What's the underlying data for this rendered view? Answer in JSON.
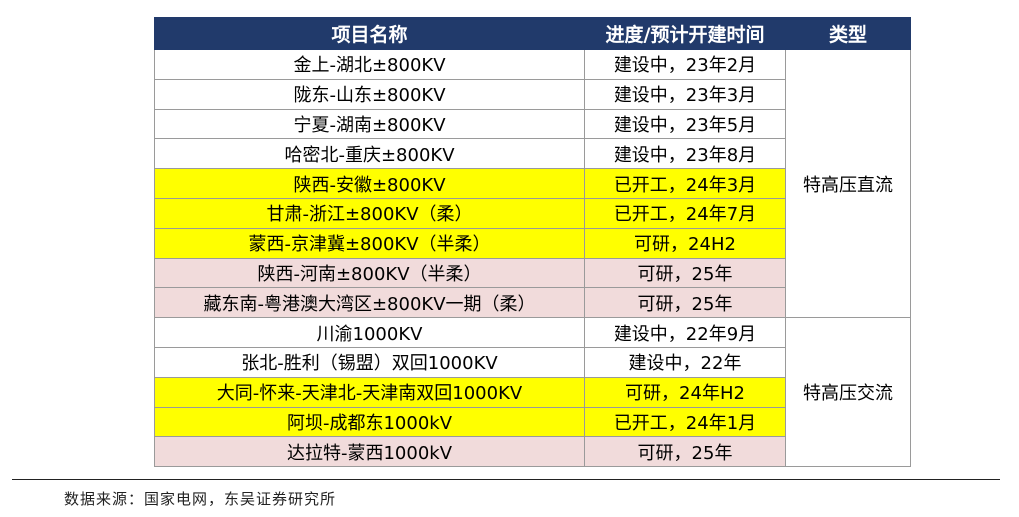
{
  "table": {
    "headers": [
      "项目名称",
      "进度/预计开建时间",
      "类型"
    ],
    "groups": [
      {
        "type": "特高压直流",
        "rows": [
          {
            "name": "金上-湖北±800KV",
            "status": "建设中，23年2月",
            "highlight": "none"
          },
          {
            "name": "陇东-山东±800KV",
            "status": "建设中，23年3月",
            "highlight": "none"
          },
          {
            "name": "宁夏-湖南±800KV",
            "status": "建设中，23年5月",
            "highlight": "none"
          },
          {
            "name": "哈密北-重庆±800KV",
            "status": "建设中，23年8月",
            "highlight": "none"
          },
          {
            "name": "陕西-安徽±800KV",
            "status": "已开工，24年3月",
            "highlight": "yellow"
          },
          {
            "name": "甘肃-浙江±800KV（柔）",
            "status": "已开工，24年7月",
            "highlight": "yellow"
          },
          {
            "name": "蒙西-京津冀±800KV（半柔）",
            "status": "可研，24H2",
            "highlight": "yellow"
          },
          {
            "name": "陕西-河南±800KV（半柔）",
            "status": "可研，25年",
            "highlight": "pink"
          },
          {
            "name": "藏东南-粤港澳大湾区±800KV一期（柔）",
            "status": "可研，25年",
            "highlight": "pink"
          }
        ]
      },
      {
        "type": "特高压交流",
        "rows": [
          {
            "name": "川渝1000KV",
            "status": "建设中，22年9月",
            "highlight": "none"
          },
          {
            "name": "张北-胜利（锡盟）双回1000KV",
            "status": "建设中，22年",
            "highlight": "none"
          },
          {
            "name": "大同-怀来-天津北-天津南双回1000KV",
            "status": "可研，24年H2",
            "highlight": "yellow"
          },
          {
            "name": "阿坝-成都东1000kV",
            "status": "已开工，24年1月",
            "highlight": "yellow"
          },
          {
            "name": "达拉特-蒙西1000kV",
            "status": "可研，25年",
            "highlight": "pink"
          }
        ]
      }
    ]
  },
  "colors": {
    "header_bg": "#213a6b",
    "highlight_yellow": "#ffff00",
    "highlight_pink": "#f1dbdb"
  },
  "source": "数据来源：国家电网，东吴证券研究所"
}
